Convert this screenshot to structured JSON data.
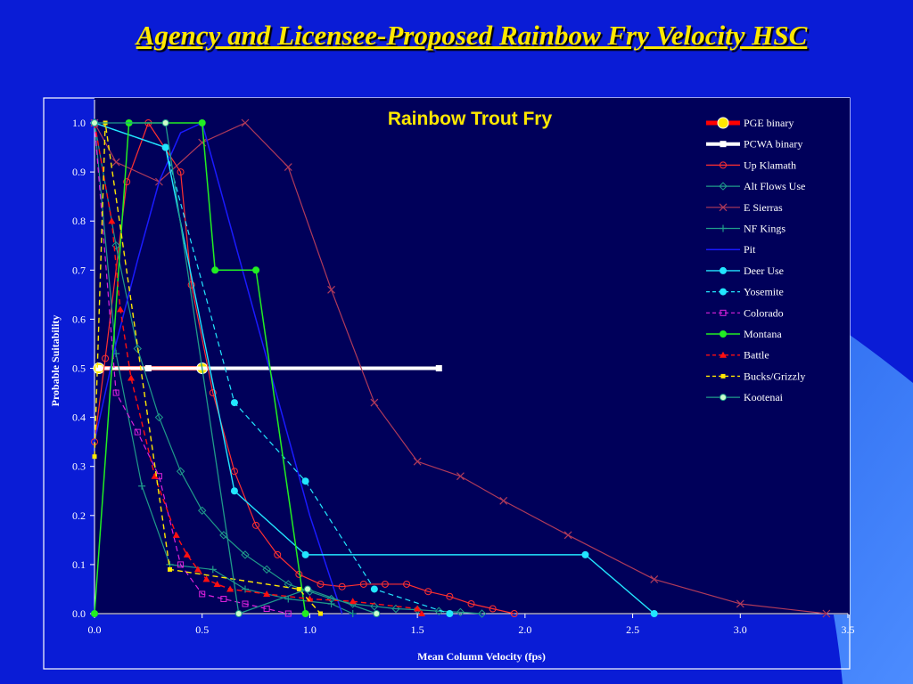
{
  "slide": {
    "title": "Agency and Licensee-Proposed Rainbow Fry Velocity HSC"
  },
  "colors": {
    "slide_background": "#0a1cd6",
    "plot_background": "#00005a",
    "title_color": "#ffe800"
  },
  "chart_data": {
    "type": "line",
    "title": "Rainbow Trout Fry",
    "xlabel": "Mean Column Velocity (fps)",
    "ylabel": "Probable Suitability",
    "xlim": [
      0,
      3.5
    ],
    "ylim": [
      0,
      1.0
    ],
    "xticks": [
      0.0,
      0.5,
      1.0,
      1.5,
      2.0,
      2.5,
      3.0,
      3.5
    ],
    "xtick_labels": [
      "0.0",
      "0.5",
      "1.0",
      "1.5",
      "2.0",
      "2.5",
      "3.0",
      "3.5"
    ],
    "yticks": [
      0.0,
      0.1,
      0.2,
      0.3,
      0.4,
      0.5,
      0.6,
      0.7,
      0.8,
      0.9,
      1.0
    ],
    "ytick_labels": [
      "0.0",
      "0.1",
      "0.2",
      "0.3",
      "0.4",
      "0.5",
      "0.6",
      "0.7",
      "0.8",
      "0.9",
      "1.0"
    ],
    "grid": false,
    "legend_position": "right",
    "series": [
      {
        "name": "PGE binary",
        "color": "#ff0000",
        "dash": "solid",
        "width": 5,
        "marker": "circle-yellow",
        "points": [
          [
            0.02,
            0.5
          ],
          [
            0.5,
            0.5
          ]
        ]
      },
      {
        "name": "PCWA binary",
        "color": "#ffffff",
        "dash": "solid",
        "width": 4,
        "marker": "square",
        "points": [
          [
            0.02,
            0.5
          ],
          [
            0.25,
            0.5
          ],
          [
            1.6,
            0.5
          ]
        ]
      },
      {
        "name": "Up Klamath",
        "color": "#ff3030",
        "dash": "solid",
        "width": 1.2,
        "marker": "circle-open",
        "points": [
          [
            0.0,
            0.35
          ],
          [
            0.05,
            0.52
          ],
          [
            0.15,
            0.88
          ],
          [
            0.25,
            1.0
          ],
          [
            0.4,
            0.9
          ],
          [
            0.45,
            0.67
          ],
          [
            0.55,
            0.45
          ],
          [
            0.65,
            0.29
          ],
          [
            0.75,
            0.18
          ],
          [
            0.85,
            0.12
          ],
          [
            0.95,
            0.08
          ],
          [
            1.05,
            0.06
          ],
          [
            1.15,
            0.055
          ],
          [
            1.25,
            0.06
          ],
          [
            1.35,
            0.06
          ],
          [
            1.45,
            0.06
          ],
          [
            1.55,
            0.045
          ],
          [
            1.65,
            0.035
          ],
          [
            1.75,
            0.02
          ],
          [
            1.85,
            0.01
          ],
          [
            1.95,
            0.0
          ]
        ]
      },
      {
        "name": "Alt Flows Use",
        "color": "#1f9a8a",
        "dash": "solid",
        "width": 1.2,
        "marker": "diamond-open",
        "points": [
          [
            0.0,
            1.0
          ],
          [
            0.1,
            0.75
          ],
          [
            0.2,
            0.54
          ],
          [
            0.3,
            0.4
          ],
          [
            0.4,
            0.29
          ],
          [
            0.5,
            0.21
          ],
          [
            0.6,
            0.16
          ],
          [
            0.7,
            0.12
          ],
          [
            0.8,
            0.09
          ],
          [
            0.9,
            0.06
          ],
          [
            1.0,
            0.045
          ],
          [
            1.1,
            0.03
          ],
          [
            1.2,
            0.02
          ],
          [
            1.3,
            0.015
          ],
          [
            1.4,
            0.01
          ],
          [
            1.5,
            0.008
          ],
          [
            1.6,
            0.005
          ],
          [
            1.7,
            0.003
          ],
          [
            1.8,
            0.0
          ]
        ]
      },
      {
        "name": "E Sierras",
        "color": "#b03a5a",
        "dash": "solid",
        "width": 1.2,
        "marker": "x",
        "points": [
          [
            0.0,
            1.0
          ],
          [
            0.1,
            0.92
          ],
          [
            0.3,
            0.88
          ],
          [
            0.5,
            0.96
          ],
          [
            0.7,
            1.0
          ],
          [
            0.9,
            0.91
          ],
          [
            1.1,
            0.66
          ],
          [
            1.3,
            0.43
          ],
          [
            1.5,
            0.31
          ],
          [
            1.7,
            0.28
          ],
          [
            1.9,
            0.23
          ],
          [
            2.2,
            0.16
          ],
          [
            2.6,
            0.07
          ],
          [
            3.0,
            0.02
          ],
          [
            3.4,
            0.0
          ]
        ]
      },
      {
        "name": "NF Kings",
        "color": "#1f9a8a",
        "dash": "solid",
        "width": 1.2,
        "marker": "plus",
        "points": [
          [
            0.0,
            1.0
          ],
          [
            0.1,
            0.53
          ],
          [
            0.22,
            0.26
          ],
          [
            0.35,
            0.1
          ],
          [
            0.55,
            0.09
          ],
          [
            0.7,
            0.05
          ],
          [
            0.9,
            0.03
          ],
          [
            1.1,
            0.02
          ],
          [
            1.2,
            0.0
          ]
        ]
      },
      {
        "name": "Pit",
        "color": "#1a1aff",
        "dash": "solid",
        "width": 1.5,
        "marker": "none",
        "points": [
          [
            0.0,
            0.35
          ],
          [
            0.1,
            0.55
          ],
          [
            0.2,
            0.72
          ],
          [
            0.3,
            0.88
          ],
          [
            0.4,
            0.98
          ],
          [
            0.5,
            1.0
          ],
          [
            0.75,
            0.6
          ],
          [
            1.0,
            0.2
          ],
          [
            1.15,
            0.0
          ]
        ]
      },
      {
        "name": "Deer Use",
        "color": "#22e6ff",
        "dash": "solid",
        "width": 1.4,
        "marker": "circle-filled",
        "points": [
          [
            0.0,
            1.0
          ],
          [
            0.33,
            0.95
          ],
          [
            0.65,
            0.25
          ],
          [
            0.98,
            0.12
          ],
          [
            2.28,
            0.12
          ],
          [
            2.6,
            0.0
          ]
        ]
      },
      {
        "name": "Yosemite",
        "color": "#22e6ff",
        "dash": "dashed",
        "width": 1.2,
        "marker": "circle-filled",
        "points": [
          [
            0.0,
            1.0
          ],
          [
            0.33,
            0.95
          ],
          [
            0.65,
            0.43
          ],
          [
            0.98,
            0.27
          ],
          [
            1.3,
            0.05
          ],
          [
            1.65,
            0.0
          ]
        ]
      },
      {
        "name": "Colorado",
        "color": "#dd22dd",
        "dash": "dashed",
        "width": 1.2,
        "marker": "square-open",
        "points": [
          [
            0.0,
            1.0
          ],
          [
            0.1,
            0.45
          ],
          [
            0.2,
            0.37
          ],
          [
            0.3,
            0.28
          ],
          [
            0.4,
            0.1
          ],
          [
            0.5,
            0.04
          ],
          [
            0.6,
            0.03
          ],
          [
            0.7,
            0.02
          ],
          [
            0.8,
            0.01
          ],
          [
            0.9,
            0.0
          ]
        ]
      },
      {
        "name": "Montana",
        "color": "#22ee22",
        "dash": "solid",
        "width": 1.5,
        "marker": "circle-filled",
        "points": [
          [
            0.0,
            0.0
          ],
          [
            0.16,
            1.0
          ],
          [
            0.5,
            1.0
          ],
          [
            0.56,
            0.7
          ],
          [
            0.75,
            0.7
          ],
          [
            0.98,
            0.0
          ]
        ]
      },
      {
        "name": "Battle",
        "color": "#ff1010",
        "dash": "dashed",
        "width": 1.4,
        "marker": "triangle",
        "points": [
          [
            0.0,
            1.0
          ],
          [
            0.08,
            0.8
          ],
          [
            0.12,
            0.62
          ],
          [
            0.17,
            0.48
          ],
          [
            0.28,
            0.28
          ],
          [
            0.38,
            0.16
          ],
          [
            0.43,
            0.12
          ],
          [
            0.48,
            0.09
          ],
          [
            0.52,
            0.07
          ],
          [
            0.57,
            0.06
          ],
          [
            0.63,
            0.05
          ],
          [
            0.8,
            0.04
          ],
          [
            1.0,
            0.03
          ],
          [
            1.2,
            0.025
          ],
          [
            1.5,
            0.01
          ],
          [
            1.52,
            0.0
          ]
        ]
      },
      {
        "name": "Bucks/Grizzly",
        "color": "#ffe800",
        "dash": "dashed",
        "width": 1.4,
        "marker": "square-filled",
        "points": [
          [
            0.0,
            0.32
          ],
          [
            0.05,
            1.0
          ],
          [
            0.35,
            0.09
          ],
          [
            0.95,
            0.05
          ],
          [
            1.05,
            0.0
          ]
        ]
      },
      {
        "name": "Kootenai",
        "color": "#1f9a8a",
        "dash": "solid",
        "width": 1.3,
        "marker": "circle-light",
        "points": [
          [
            0.0,
            1.0
          ],
          [
            0.33,
            1.0
          ],
          [
            0.67,
            0.0
          ],
          [
            0.99,
            0.05
          ],
          [
            1.31,
            0.0
          ]
        ]
      }
    ]
  }
}
